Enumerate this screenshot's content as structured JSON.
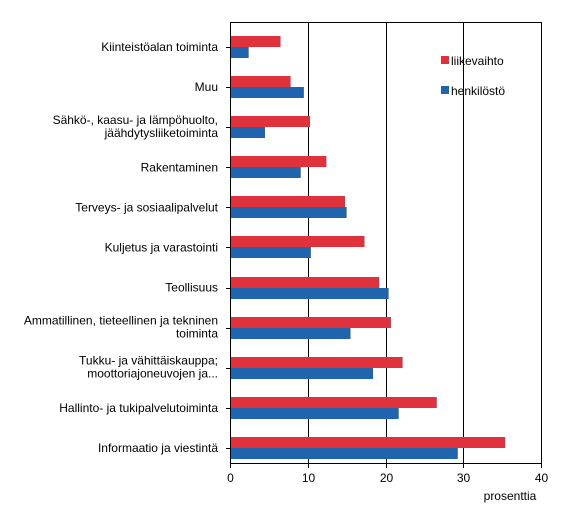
{
  "chart_data": {
    "type": "bar",
    "orientation": "horizontal",
    "categories": [
      [
        "Kiinteistöalan toiminta"
      ],
      [
        "Muu"
      ],
      [
        "Sähkö-, kaasu- ja lämpöhuolto,",
        "jäähdytysliiketoiminta"
      ],
      [
        "Rakentaminen"
      ],
      [
        "Terveys- ja sosiaalipalvelut"
      ],
      [
        "Kuljetus ja varastointi"
      ],
      [
        "Teollisuus"
      ],
      [
        "Ammatillinen, tieteellinen ja tekninen",
        "toiminta"
      ],
      [
        "Tukku- ja vähittäiskauppa;",
        "moottoriajoneuvojen ja..."
      ],
      [
        "Hallinto- ja tukipalvelutoiminta"
      ],
      [
        "Informaatio ja viestintä"
      ]
    ],
    "series": [
      {
        "name": "liikevaihto",
        "color": "#e0323c",
        "values": [
          6.5,
          7.8,
          10.3,
          12.4,
          14.8,
          17.3,
          19.2,
          20.7,
          22.2,
          26.6,
          35.4
        ]
      },
      {
        "name": "henkilöstö",
        "color": "#1f64ad",
        "values": [
          2.4,
          9.5,
          4.5,
          9.1,
          15.0,
          10.4,
          20.4,
          15.5,
          18.4,
          21.7,
          29.3
        ]
      }
    ],
    "xlim": [
      0,
      40
    ],
    "xticks": [
      0,
      10,
      20,
      30,
      40
    ],
    "xlabel": "prosenttia",
    "gridlines": "vertical at major ticks",
    "legend_position": "top-right inside plot"
  }
}
